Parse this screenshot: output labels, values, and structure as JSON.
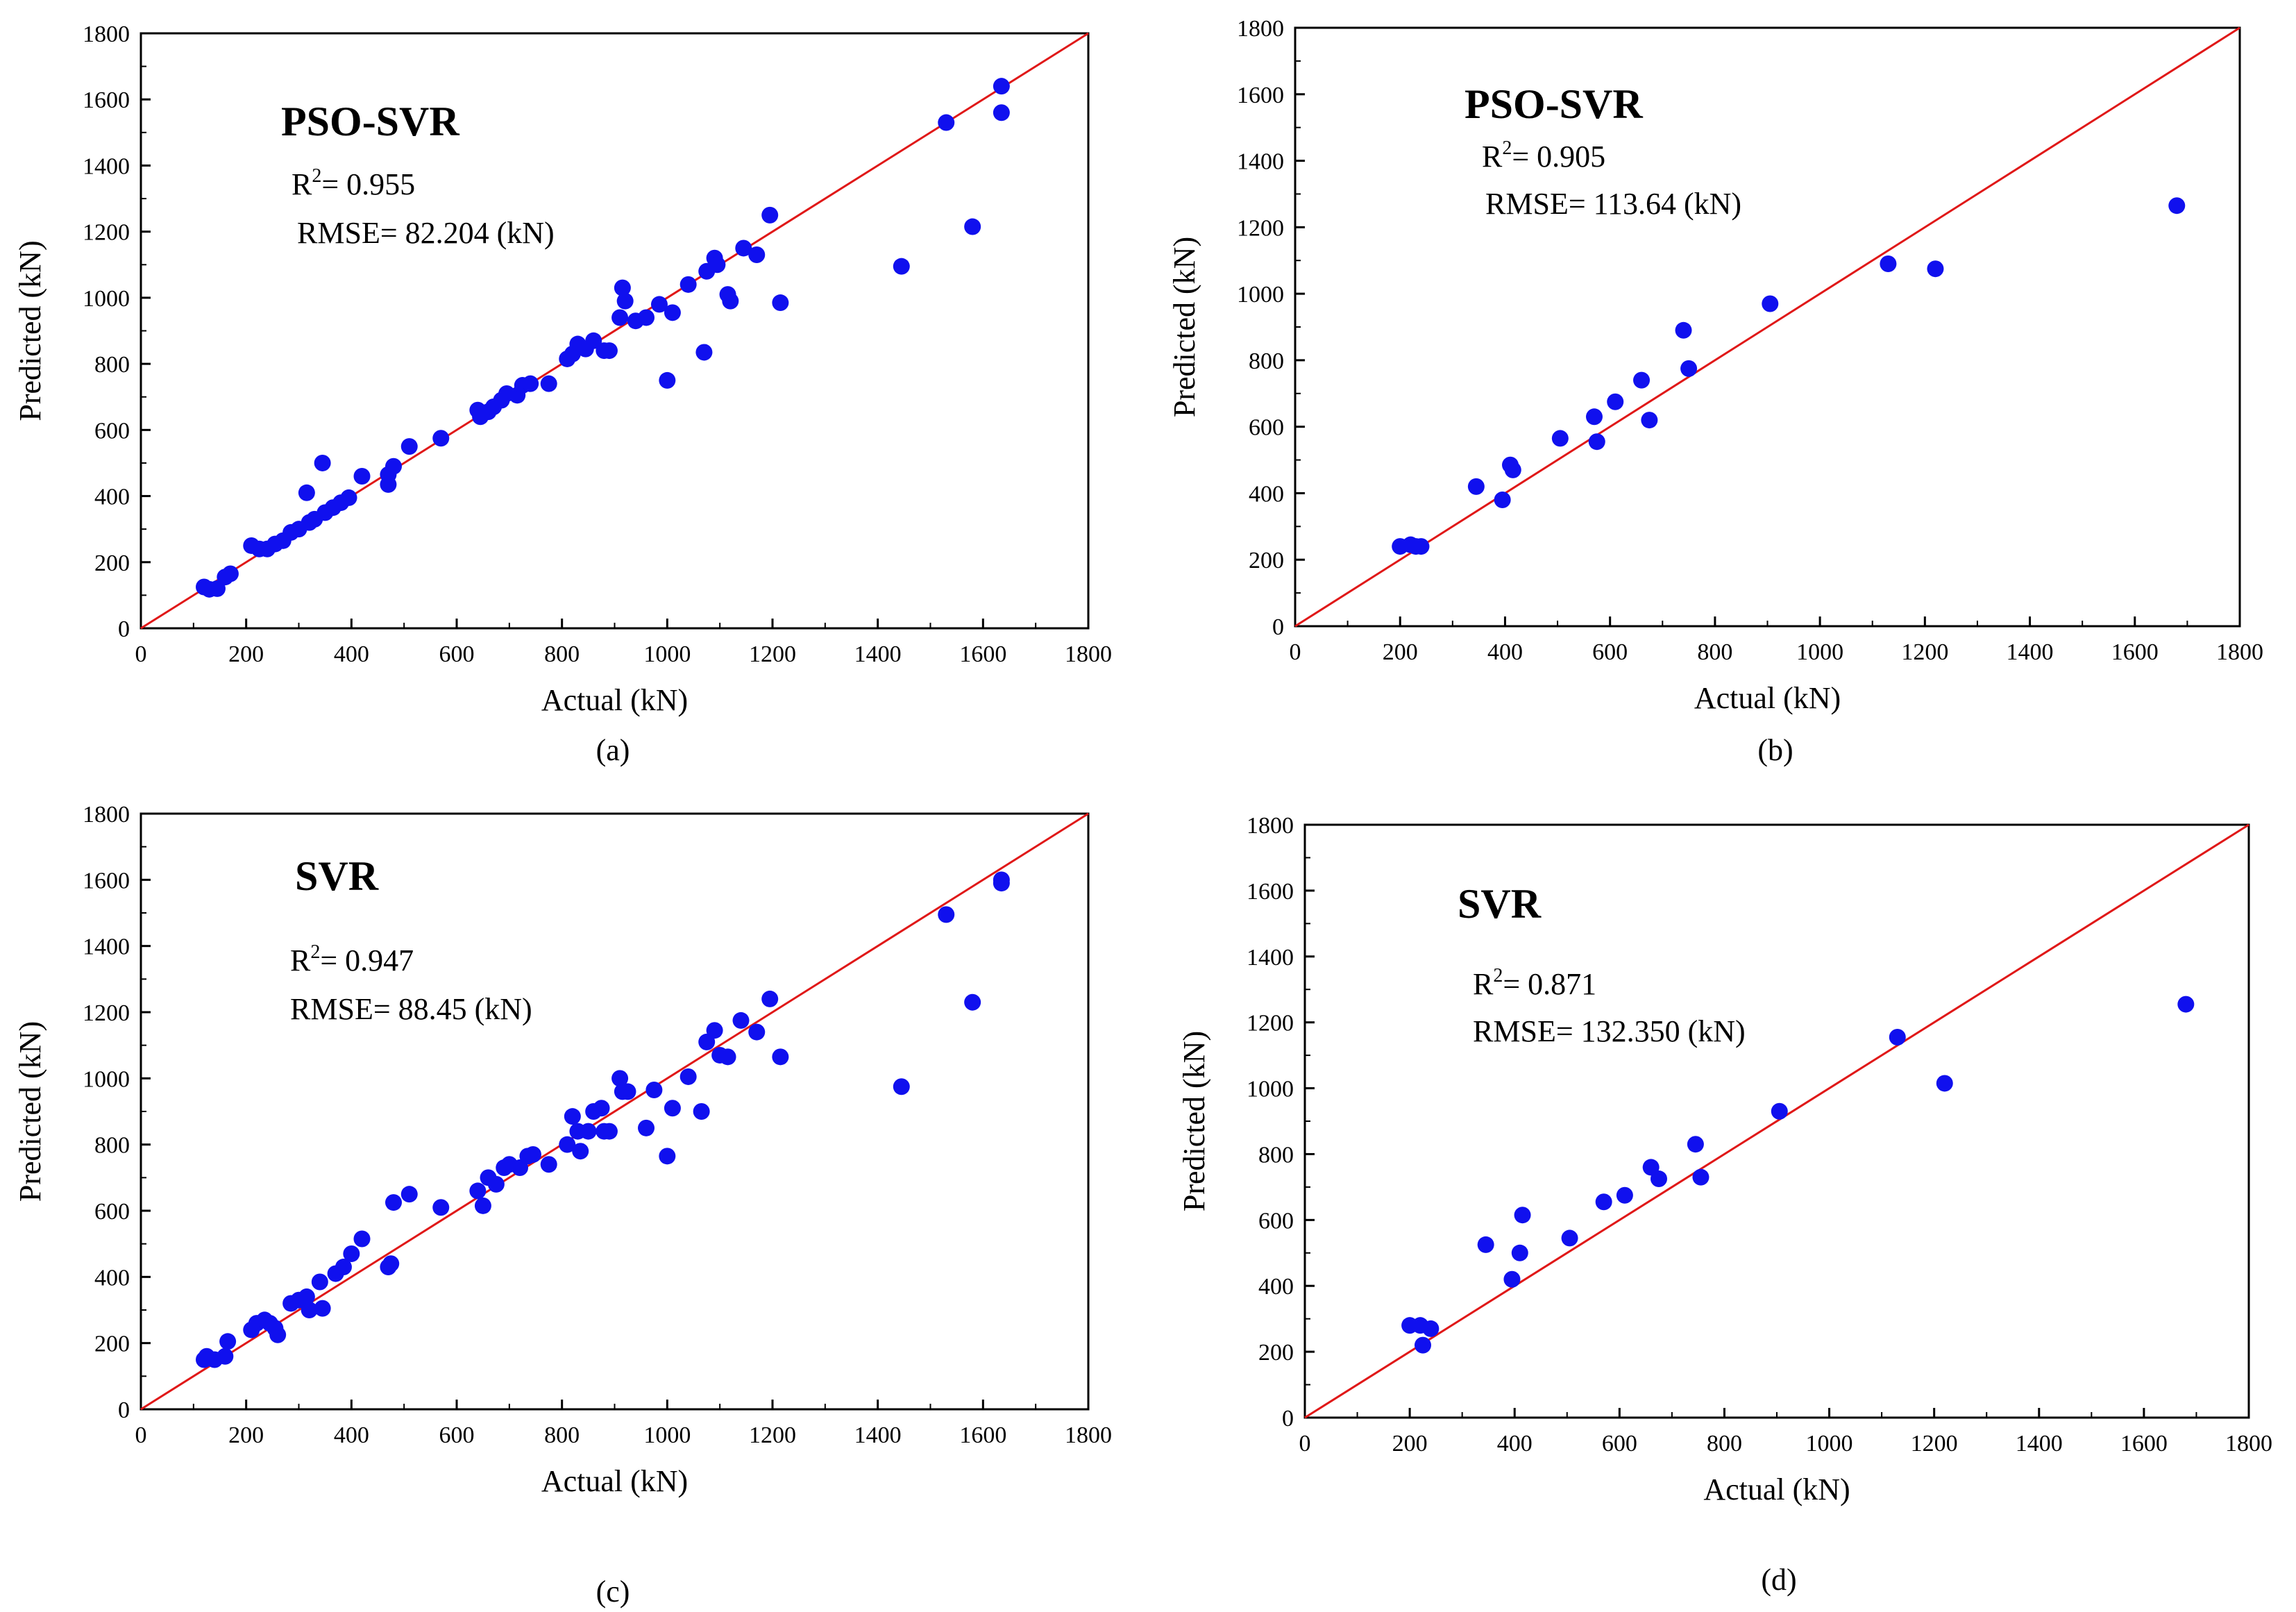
{
  "chart_data": [
    {
      "type": "scatter",
      "panel": "(a)",
      "title": "PSO-SVR",
      "r2_label": "R",
      "r2_sup": "2",
      "r2_value": "= 0.955",
      "rmse": "RMSE= 82.204 (kN)",
      "xlabel": "Actual (kN)",
      "ylabel": "Predicted (kN)",
      "xlim": [
        0,
        1800
      ],
      "ylim": [
        0,
        1800
      ],
      "xticks": [
        0,
        200,
        400,
        600,
        800,
        1000,
        1200,
        1400,
        1600,
        1800
      ],
      "yticks": [
        0,
        200,
        400,
        600,
        800,
        1000,
        1200,
        1400,
        1600,
        1800
      ],
      "reference_line": "y = x",
      "points": [
        [
          120,
          125
        ],
        [
          130,
          118
        ],
        [
          145,
          120
        ],
        [
          160,
          155
        ],
        [
          170,
          165
        ],
        [
          210,
          250
        ],
        [
          225,
          240
        ],
        [
          240,
          240
        ],
        [
          255,
          255
        ],
        [
          270,
          265
        ],
        [
          285,
          290
        ],
        [
          300,
          300
        ],
        [
          315,
          410
        ],
        [
          320,
          320
        ],
        [
          330,
          330
        ],
        [
          345,
          500
        ],
        [
          350,
          350
        ],
        [
          365,
          365
        ],
        [
          380,
          380
        ],
        [
          395,
          395
        ],
        [
          420,
          460
        ],
        [
          470,
          435
        ],
        [
          470,
          465
        ],
        [
          480,
          490
        ],
        [
          510,
          550
        ],
        [
          570,
          575
        ],
        [
          640,
          660
        ],
        [
          645,
          640
        ],
        [
          660,
          655
        ],
        [
          670,
          670
        ],
        [
          685,
          690
        ],
        [
          695,
          710
        ],
        [
          715,
          705
        ],
        [
          725,
          735
        ],
        [
          740,
          740
        ],
        [
          775,
          740
        ],
        [
          810,
          815
        ],
        [
          820,
          830
        ],
        [
          830,
          860
        ],
        [
          845,
          845
        ],
        [
          860,
          870
        ],
        [
          880,
          840
        ],
        [
          890,
          840
        ],
        [
          910,
          940
        ],
        [
          915,
          1030
        ],
        [
          920,
          990
        ],
        [
          940,
          930
        ],
        [
          960,
          940
        ],
        [
          985,
          980
        ],
        [
          1000,
          750
        ],
        [
          1010,
          955
        ],
        [
          1040,
          1040
        ],
        [
          1070,
          835
        ],
        [
          1075,
          1080
        ],
        [
          1090,
          1120
        ],
        [
          1095,
          1100
        ],
        [
          1115,
          1010
        ],
        [
          1120,
          990
        ],
        [
          1145,
          1150
        ],
        [
          1170,
          1130
        ],
        [
          1195,
          1250
        ],
        [
          1215,
          985
        ],
        [
          1445,
          1095
        ],
        [
          1530,
          1530
        ],
        [
          1580,
          1215
        ],
        [
          1635,
          1640
        ],
        [
          1635,
          1560
        ]
      ]
    },
    {
      "type": "scatter",
      "panel": "(b)",
      "title": "PSO-SVR",
      "r2_label": "R",
      "r2_sup": "2",
      "r2_value": "= 0.905",
      "rmse": "RMSE= 113.64 (kN)",
      "xlabel": "Actual (kN)",
      "ylabel": "Predicted (kN)",
      "xlim": [
        0,
        1800
      ],
      "ylim": [
        0,
        1800
      ],
      "xticks": [
        0,
        200,
        400,
        600,
        800,
        1000,
        1200,
        1400,
        1600,
        1800
      ],
      "yticks": [
        0,
        200,
        400,
        600,
        800,
        1000,
        1200,
        1400,
        1600,
        1800
      ],
      "reference_line": "y = x",
      "points": [
        [
          200,
          240
        ],
        [
          220,
          245
        ],
        [
          230,
          240
        ],
        [
          240,
          240
        ],
        [
          345,
          420
        ],
        [
          395,
          380
        ],
        [
          410,
          485
        ],
        [
          415,
          470
        ],
        [
          505,
          565
        ],
        [
          570,
          630
        ],
        [
          575,
          555
        ],
        [
          610,
          675
        ],
        [
          660,
          740
        ],
        [
          675,
          620
        ],
        [
          740,
          890
        ],
        [
          750,
          775
        ],
        [
          905,
          970
        ],
        [
          1130,
          1090
        ],
        [
          1220,
          1075
        ],
        [
          1680,
          1265
        ]
      ]
    },
    {
      "type": "scatter",
      "panel": "(c)",
      "title": "SVR",
      "r2_label": "R",
      "r2_sup": "2",
      "r2_value": "= 0.947",
      "rmse": "RMSE= 88.45 (kN)",
      "xlabel": "Actual (kN)",
      "ylabel": "Predicted (kN)",
      "xlim": [
        0,
        1800
      ],
      "ylim": [
        0,
        1800
      ],
      "xticks": [
        0,
        200,
        400,
        600,
        800,
        1000,
        1200,
        1400,
        1600,
        1800
      ],
      "yticks": [
        0,
        200,
        400,
        600,
        800,
        1000,
        1200,
        1400,
        1600,
        1800
      ],
      "reference_line": "y = x",
      "points": [
        [
          120,
          150
        ],
        [
          125,
          160
        ],
        [
          140,
          150
        ],
        [
          160,
          160
        ],
        [
          165,
          205
        ],
        [
          210,
          240
        ],
        [
          220,
          260
        ],
        [
          235,
          270
        ],
        [
          245,
          260
        ],
        [
          255,
          245
        ],
        [
          260,
          225
        ],
        [
          285,
          320
        ],
        [
          300,
          330
        ],
        [
          315,
          340
        ],
        [
          320,
          300
        ],
        [
          340,
          385
        ],
        [
          345,
          305
        ],
        [
          370,
          410
        ],
        [
          385,
          430
        ],
        [
          400,
          470
        ],
        [
          420,
          515
        ],
        [
          470,
          430
        ],
        [
          475,
          440
        ],
        [
          480,
          625
        ],
        [
          510,
          650
        ],
        [
          570,
          610
        ],
        [
          640,
          660
        ],
        [
          650,
          615
        ],
        [
          660,
          700
        ],
        [
          675,
          680
        ],
        [
          690,
          730
        ],
        [
          700,
          740
        ],
        [
          720,
          730
        ],
        [
          735,
          765
        ],
        [
          745,
          770
        ],
        [
          775,
          740
        ],
        [
          810,
          800
        ],
        [
          820,
          885
        ],
        [
          830,
          840
        ],
        [
          835,
          780
        ],
        [
          850,
          840
        ],
        [
          860,
          900
        ],
        [
          875,
          910
        ],
        [
          880,
          840
        ],
        [
          890,
          840
        ],
        [
          910,
          1000
        ],
        [
          915,
          960
        ],
        [
          925,
          960
        ],
        [
          960,
          850
        ],
        [
          975,
          965
        ],
        [
          1000,
          765
        ],
        [
          1010,
          910
        ],
        [
          1040,
          1005
        ],
        [
          1065,
          900
        ],
        [
          1075,
          1110
        ],
        [
          1090,
          1145
        ],
        [
          1100,
          1070
        ],
        [
          1115,
          1065
        ],
        [
          1140,
          1175
        ],
        [
          1170,
          1140
        ],
        [
          1195,
          1240
        ],
        [
          1215,
          1065
        ],
        [
          1445,
          975
        ],
        [
          1530,
          1495
        ],
        [
          1580,
          1230
        ],
        [
          1635,
          1600
        ],
        [
          1635,
          1590
        ]
      ]
    },
    {
      "type": "scatter",
      "panel": "(d)",
      "title": "SVR",
      "r2_label": "R",
      "r2_sup": "2",
      "r2_value": "= 0.871",
      "rmse": "RMSE= 132.350 (kN)",
      "xlabel": "Actual (kN)",
      "ylabel": "Predicted (kN)",
      "xlim": [
        0,
        1800
      ],
      "ylim": [
        0,
        1800
      ],
      "xticks": [
        0,
        200,
        400,
        600,
        800,
        1000,
        1200,
        1400,
        1600,
        1800
      ],
      "yticks": [
        0,
        200,
        400,
        600,
        800,
        1000,
        1200,
        1400,
        1600,
        1800
      ],
      "reference_line": "y = x",
      "points": [
        [
          200,
          280
        ],
        [
          220,
          280
        ],
        [
          225,
          220
        ],
        [
          240,
          270
        ],
        [
          345,
          525
        ],
        [
          395,
          420
        ],
        [
          410,
          500
        ],
        [
          415,
          615
        ],
        [
          505,
          545
        ],
        [
          570,
          655
        ],
        [
          610,
          675
        ],
        [
          660,
          760
        ],
        [
          675,
          725
        ],
        [
          745,
          830
        ],
        [
          755,
          730
        ],
        [
          905,
          930
        ],
        [
          1130,
          1155
        ],
        [
          1220,
          1015
        ],
        [
          1680,
          1255
        ]
      ]
    }
  ]
}
